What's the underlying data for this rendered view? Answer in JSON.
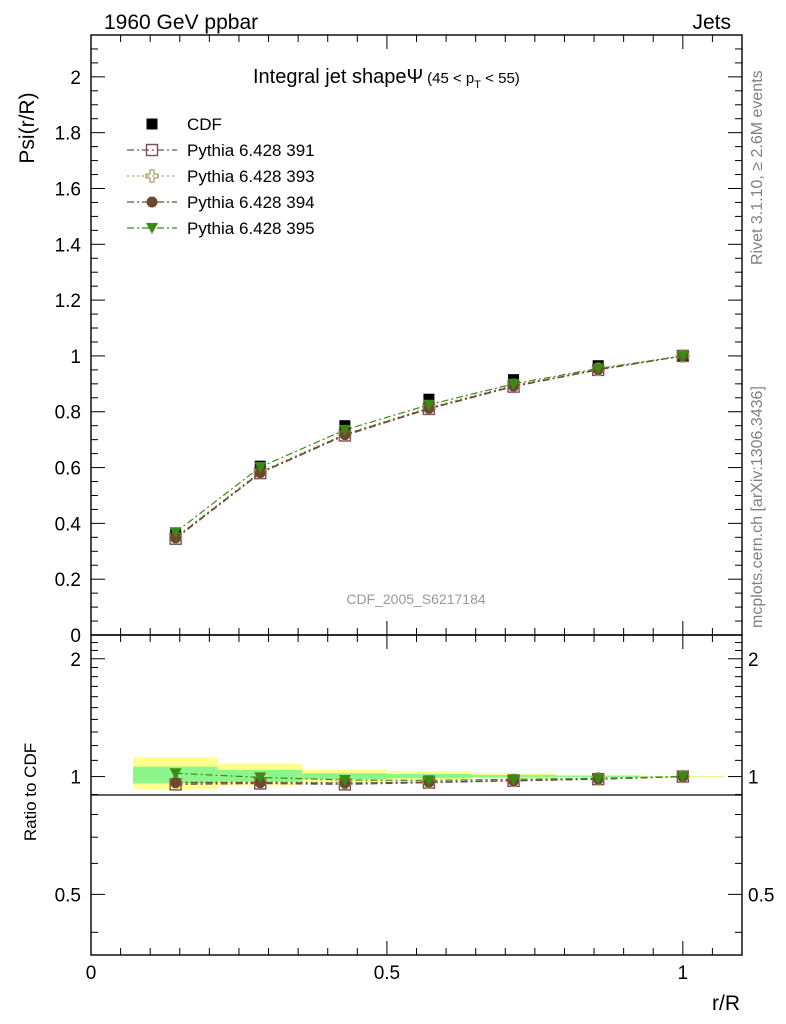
{
  "header": {
    "left": "1960 GeV ppbar",
    "right": "Jets"
  },
  "side_labels": {
    "rivet": "Rivet 3.1.10, ≥ 2.6M events",
    "mcplots": "mcplots.cern.ch [arXiv:1306.3436]"
  },
  "watermark": "CDF_2005_S6217184",
  "chart_data": [
    {
      "type": "scatter",
      "panel": "main",
      "title": "Integral jet shapeΨ",
      "title_suffix": "(45 < p",
      "title_sub": "T",
      "title_end": " < 55)",
      "xlabel": "r/R",
      "ylabel": "Psi(r/R)",
      "xlim": [
        0,
        1.1
      ],
      "ylim": [
        0,
        2.15
      ],
      "yticks": [
        {
          "v": 0,
          "label": "0"
        },
        {
          "v": 0.2,
          "label": "0.2"
        },
        {
          "v": 0.4,
          "label": "0.4"
        },
        {
          "v": 0.6,
          "label": "0.6"
        },
        {
          "v": 0.8,
          "label": "0.8"
        },
        {
          "v": 1.0,
          "label": "1"
        },
        {
          "v": 1.2,
          "label": "1.2"
        },
        {
          "v": 1.4,
          "label": "1.4"
        },
        {
          "v": 1.6,
          "label": "1.6"
        },
        {
          "v": 1.8,
          "label": "1.8"
        },
        {
          "v": 2.0,
          "label": "2"
        }
      ],
      "x": [
        0.143,
        0.286,
        0.429,
        0.571,
        0.714,
        0.857,
        1.0
      ],
      "series": [
        {
          "name": "CDF",
          "marker": "square-filled",
          "color": "#000000",
          "line": "none",
          "values": [
            0.36,
            0.605,
            0.75,
            0.845,
            0.915,
            0.965,
            1.0
          ]
        },
        {
          "name": "Pythia 6.428 391",
          "marker": "square-open",
          "color": "#7a4a5e",
          "line": "dashdot",
          "values": [
            0.345,
            0.58,
            0.715,
            0.81,
            0.89,
            0.95,
            1.0
          ]
        },
        {
          "name": "Pythia 6.428 393",
          "marker": "cross-open",
          "color": "#a8a060",
          "line": "dotted",
          "values": [
            0.35,
            0.585,
            0.72,
            0.815,
            0.895,
            0.952,
            1.0
          ]
        },
        {
          "name": "Pythia 6.428 394",
          "marker": "circle-filled",
          "color": "#6b4a2e",
          "line": "dashdot",
          "values": [
            0.348,
            0.582,
            0.718,
            0.812,
            0.892,
            0.951,
            1.0
          ]
        },
        {
          "name": "Pythia 6.428 395",
          "marker": "triangle-down-filled",
          "color": "#3c8a16",
          "line": "dashdot",
          "values": [
            0.368,
            0.602,
            0.735,
            0.825,
            0.9,
            0.955,
            1.0
          ]
        }
      ]
    },
    {
      "type": "scatter",
      "panel": "ratio",
      "xlabel": "r/R",
      "ylabel": "Ratio to CDF",
      "xlim": [
        0,
        1.1
      ],
      "ylim": [
        0.35,
        2.3
      ],
      "xticks": [
        {
          "v": 0,
          "label": "0"
        },
        {
          "v": 0.5,
          "label": "0.5"
        },
        {
          "v": 1.0,
          "label": "1"
        }
      ],
      "yticks": [
        {
          "v": 0.5,
          "label": "0.5"
        },
        {
          "v": 1.0,
          "label": "1"
        },
        {
          "v": 2.0,
          "label": "2"
        }
      ],
      "bands": [
        {
          "x0": 0.071,
          "x1": 0.214,
          "yellow": [
            0.93,
            1.12
          ],
          "green": [
            0.96,
            1.06
          ]
        },
        {
          "x0": 0.214,
          "x1": 0.357,
          "yellow": [
            0.95,
            1.08
          ],
          "green": [
            0.97,
            1.04
          ]
        },
        {
          "x0": 0.357,
          "x1": 0.5,
          "yellow": [
            0.97,
            1.04
          ],
          "green": [
            0.985,
            1.02
          ]
        },
        {
          "x0": 0.5,
          "x1": 0.643,
          "yellow": [
            0.98,
            1.03
          ],
          "green": [
            0.99,
            1.015
          ]
        },
        {
          "x0": 0.643,
          "x1": 0.786,
          "yellow": [
            0.99,
            1.02
          ],
          "green": [
            0.995,
            1.01
          ]
        },
        {
          "x0": 0.786,
          "x1": 0.929,
          "yellow": [
            0.995,
            1.01
          ],
          "green": [
            0.997,
            1.005
          ]
        },
        {
          "x0": 0.929,
          "x1": 1.071,
          "yellow": [
            0.998,
            1.003
          ],
          "green": [
            0.999,
            1.001
          ]
        }
      ],
      "x": [
        0.143,
        0.286,
        0.429,
        0.571,
        0.714,
        0.857,
        1.0
      ],
      "series": [
        {
          "name": "Pythia 6.428 391",
          "values": [
            0.955,
            0.96,
            0.955,
            0.965,
            0.975,
            0.985,
            1.0
          ]
        },
        {
          "name": "Pythia 6.428 393",
          "values": [
            0.97,
            0.97,
            0.965,
            0.97,
            0.978,
            0.986,
            1.0
          ]
        },
        {
          "name": "Pythia 6.428 394",
          "values": [
            0.965,
            0.965,
            0.962,
            0.968,
            0.976,
            0.985,
            1.0
          ]
        },
        {
          "name": "Pythia 6.428 395",
          "values": [
            1.02,
            0.995,
            0.98,
            0.978,
            0.984,
            0.99,
            1.0
          ]
        }
      ]
    }
  ]
}
